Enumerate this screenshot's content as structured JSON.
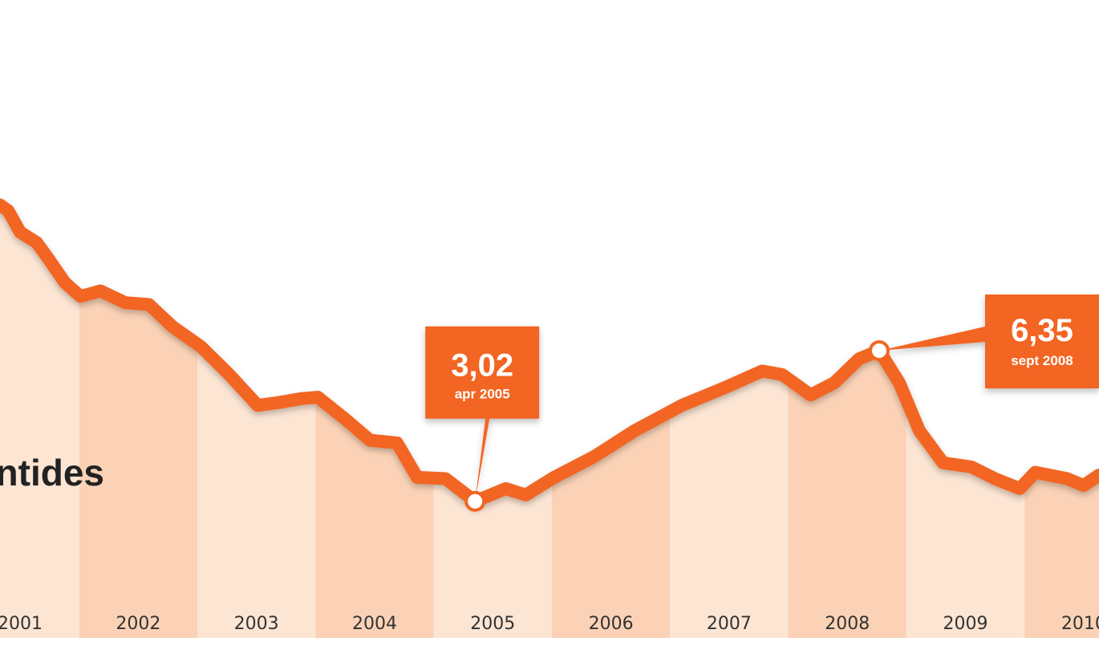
{
  "chart_data": {
    "type": "line",
    "title": "ntides",
    "color": "#f26522",
    "band_colors": [
      "#fde5d3",
      "#fbd2b6"
    ],
    "xlim": [
      2001.33,
      2010.63
    ],
    "ylim": [
      0,
      14.1
    ],
    "xticks": [
      2001,
      2002,
      2003,
      2004,
      2005,
      2006,
      2007,
      2008,
      2009,
      2010
    ],
    "x": [
      2001.33,
      2001.4,
      2001.5,
      2001.64,
      2001.74,
      2001.88,
      2002.01,
      2002.18,
      2002.39,
      2002.59,
      2002.79,
      2003.03,
      2003.27,
      2003.51,
      2003.68,
      2003.88,
      2004.02,
      2004.25,
      2004.46,
      2004.69,
      2004.86,
      2005.1,
      2005.35,
      2005.61,
      2005.78,
      2006.02,
      2006.36,
      2006.7,
      2007.1,
      2007.48,
      2007.78,
      2007.95,
      2008.19,
      2008.39,
      2008.6,
      2008.77,
      2008.94,
      2009.11,
      2009.31,
      2009.55,
      2009.75,
      2009.96,
      2010.09,
      2010.36,
      2010.5,
      2010.63
    ],
    "values": [
      9.57,
      9.44,
      8.97,
      8.74,
      8.38,
      7.85,
      7.55,
      7.67,
      7.41,
      7.37,
      6.88,
      6.44,
      5.82,
      5.14,
      5.2,
      5.29,
      5.32,
      4.84,
      4.37,
      4.31,
      3.55,
      3.52,
      3.02,
      3.3,
      3.16,
      3.55,
      4.01,
      4.58,
      5.14,
      5.55,
      5.9,
      5.82,
      5.37,
      5.64,
      6.17,
      6.35,
      5.64,
      4.58,
      3.87,
      3.78,
      3.52,
      3.3,
      3.66,
      3.52,
      3.37,
      3.6
    ],
    "annotations": [
      {
        "x": 2005.35,
        "value": 3.02,
        "label": "3,02",
        "date": "apr 2005"
      },
      {
        "x": 2008.77,
        "value": 6.35,
        "label": "6,35",
        "date": "sept 2008"
      }
    ]
  }
}
